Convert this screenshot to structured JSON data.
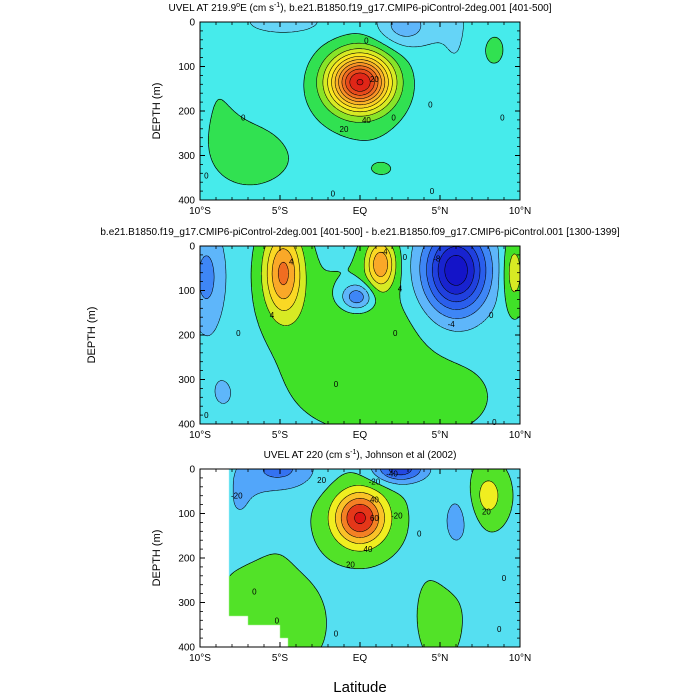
{
  "chart_data": [
    {
      "type": "heatmap",
      "title": "UVEL AT 219.9°E (cm s⁻¹), b.e21.B1850.f19_g17.CMIP6-piControl-2deg.001 [401-500]",
      "title_parts": [
        "UVEL AT 219.9",
        "o",
        "E (cm s",
        "-1",
        "), b.e21.B1850.f19_g17.CMIP6-piControl-2deg.001 [401-500]"
      ],
      "ylabel": "DEPTH (m)",
      "xlim": [
        -10,
        10
      ],
      "ylim": [
        400,
        0
      ],
      "xticks": [
        "10°S",
        "5°S",
        "EQ",
        "5°N",
        "10°N"
      ],
      "yticks": [
        "0",
        "100",
        "200",
        "300",
        "400"
      ],
      "contour_labels": [
        {
          "text": "0",
          "lat": 0.4,
          "depth": 42
        },
        {
          "text": "20",
          "lat": 0.9,
          "depth": 128
        },
        {
          "text": "20",
          "lat": -1.0,
          "depth": 240
        },
        {
          "text": "40",
          "lat": 0.4,
          "depth": 220
        },
        {
          "text": "0",
          "lat": -7.3,
          "depth": 215
        },
        {
          "text": "0",
          "lat": 2.1,
          "depth": 215
        },
        {
          "text": "0",
          "lat": 4.4,
          "depth": 185
        },
        {
          "text": "0",
          "lat": 8.9,
          "depth": 215
        },
        {
          "text": "0",
          "lat": -9.6,
          "depth": 345
        },
        {
          "text": "0",
          "lat": -1.7,
          "depth": 385
        },
        {
          "text": "0",
          "lat": 4.5,
          "depth": 380
        }
      ],
      "features": [
        {
          "kind": "eastward_core",
          "lat": 0.0,
          "depth": 135,
          "peak": 100
        },
        {
          "kind": "westward_surface",
          "lat": 2.6,
          "depth": 10,
          "peak": -20
        },
        {
          "kind": "westward_surface",
          "lat": -4.5,
          "depth": 0,
          "peak": -10
        },
        {
          "kind": "eastward_subsurface",
          "lat": 8.0,
          "depth": 60,
          "peak": 10
        }
      ]
    },
    {
      "type": "heatmap",
      "title": "b.e21.B1850.f19_g17.CMIP6-piControl-2deg.001 [401-500] - b.e21.B1850.f09_g17.CMIP6-piControl.001 [1300-1399]",
      "ylabel": "DEPTH (m)",
      "xlim": [
        -10,
        10
      ],
      "ylim": [
        400,
        0
      ],
      "xticks": [
        "10°S",
        "5°S",
        "EQ",
        "5°N",
        "10°N"
      ],
      "yticks": [
        "0",
        "100",
        "200",
        "300",
        "400"
      ],
      "contour_labels": [
        {
          "text": "4",
          "lat": -4.3,
          "depth": 35
        },
        {
          "text": "4",
          "lat": -5.5,
          "depth": 155
        },
        {
          "text": "-4",
          "lat": 1.5,
          "depth": 12
        },
        {
          "text": "4",
          "lat": 2.5,
          "depth": 95
        },
        {
          "text": "0",
          "lat": 2.8,
          "depth": 25
        },
        {
          "text": "-8",
          "lat": 4.8,
          "depth": 28
        },
        {
          "text": "-4",
          "lat": 5.7,
          "depth": 175
        },
        {
          "text": "0",
          "lat": -7.6,
          "depth": 195
        },
        {
          "text": "0",
          "lat": 2.2,
          "depth": 195
        },
        {
          "text": "0",
          "lat": 8.2,
          "depth": 155
        },
        {
          "text": "0",
          "lat": -1.5,
          "depth": 310
        },
        {
          "text": "0",
          "lat": -9.6,
          "depth": 380
        },
        {
          "text": "0",
          "lat": 8.4,
          "depth": 395
        }
      ],
      "features": [
        {
          "kind": "positive",
          "lat": -4.8,
          "depth": 60,
          "peak": 8
        },
        {
          "kind": "positive",
          "lat": 1.3,
          "depth": 40,
          "peak": 8
        },
        {
          "kind": "negative",
          "lat": 6.0,
          "depth": 50,
          "peak": -12
        },
        {
          "kind": "negative",
          "lat": -0.2,
          "depth": 115,
          "peak": -6
        },
        {
          "kind": "negative",
          "lat": -9.6,
          "depth": 70,
          "peak": -4
        },
        {
          "kind": "positive",
          "lat": 9.5,
          "depth": 60,
          "peak": 4
        }
      ]
    },
    {
      "type": "heatmap",
      "title": "UVEL AT 220 (cm s⁻¹), Johnson et al (2002)",
      "title_parts": [
        "UVEL AT 220 (cm s",
        "-1",
        "), Johnson et al (2002)"
      ],
      "ylabel": "DEPTH (m)",
      "xlabel": "Latitude",
      "xlim": [
        -10,
        10
      ],
      "ylim": [
        400,
        0
      ],
      "xticks": [
        "10°S",
        "5°S",
        "EQ",
        "5°N",
        "10°N"
      ],
      "yticks": [
        "0",
        "100",
        "200",
        "300",
        "400"
      ],
      "contour_labels": [
        {
          "text": "-20",
          "lat": -7.7,
          "depth": 60
        },
        {
          "text": "20",
          "lat": -2.4,
          "depth": 25
        },
        {
          "text": "-20",
          "lat": 0.9,
          "depth": 28
        },
        {
          "text": "40",
          "lat": 0.9,
          "depth": 68
        },
        {
          "text": "60",
          "lat": 0.9,
          "depth": 110
        },
        {
          "text": "-40",
          "lat": 2.0,
          "depth": 10
        },
        {
          "text": "-20",
          "lat": 2.3,
          "depth": 105
        },
        {
          "text": "40",
          "lat": 0.5,
          "depth": 180
        },
        {
          "text": "20",
          "lat": -0.6,
          "depth": 215
        },
        {
          "text": "0",
          "lat": 3.7,
          "depth": 145
        },
        {
          "text": "20",
          "lat": 7.9,
          "depth": 95
        },
        {
          "text": "0",
          "lat": -6.6,
          "depth": 275
        },
        {
          "text": "0",
          "lat": 9.0,
          "depth": 245
        },
        {
          "text": "0",
          "lat": -5.2,
          "depth": 340
        },
        {
          "text": "0",
          "lat": -1.5,
          "depth": 370
        },
        {
          "text": "0",
          "lat": 8.7,
          "depth": 360
        }
      ],
      "features": [
        {
          "kind": "eastward_core",
          "lat": 0.0,
          "depth": 110,
          "peak": 100
        },
        {
          "kind": "westward_surface",
          "lat": 2.5,
          "depth": 0,
          "peak": -60
        },
        {
          "kind": "westward_surface",
          "lat": -5.0,
          "depth": 0,
          "peak": -40
        },
        {
          "kind": "eastward_subsurface",
          "lat": 8.0,
          "depth": 60,
          "peak": 30
        },
        {
          "kind": "no_data_region",
          "lat_from": -10,
          "lat_to": -8,
          "note": "missing data"
        }
      ]
    }
  ],
  "figure": {
    "xlabel": "Latitude"
  }
}
